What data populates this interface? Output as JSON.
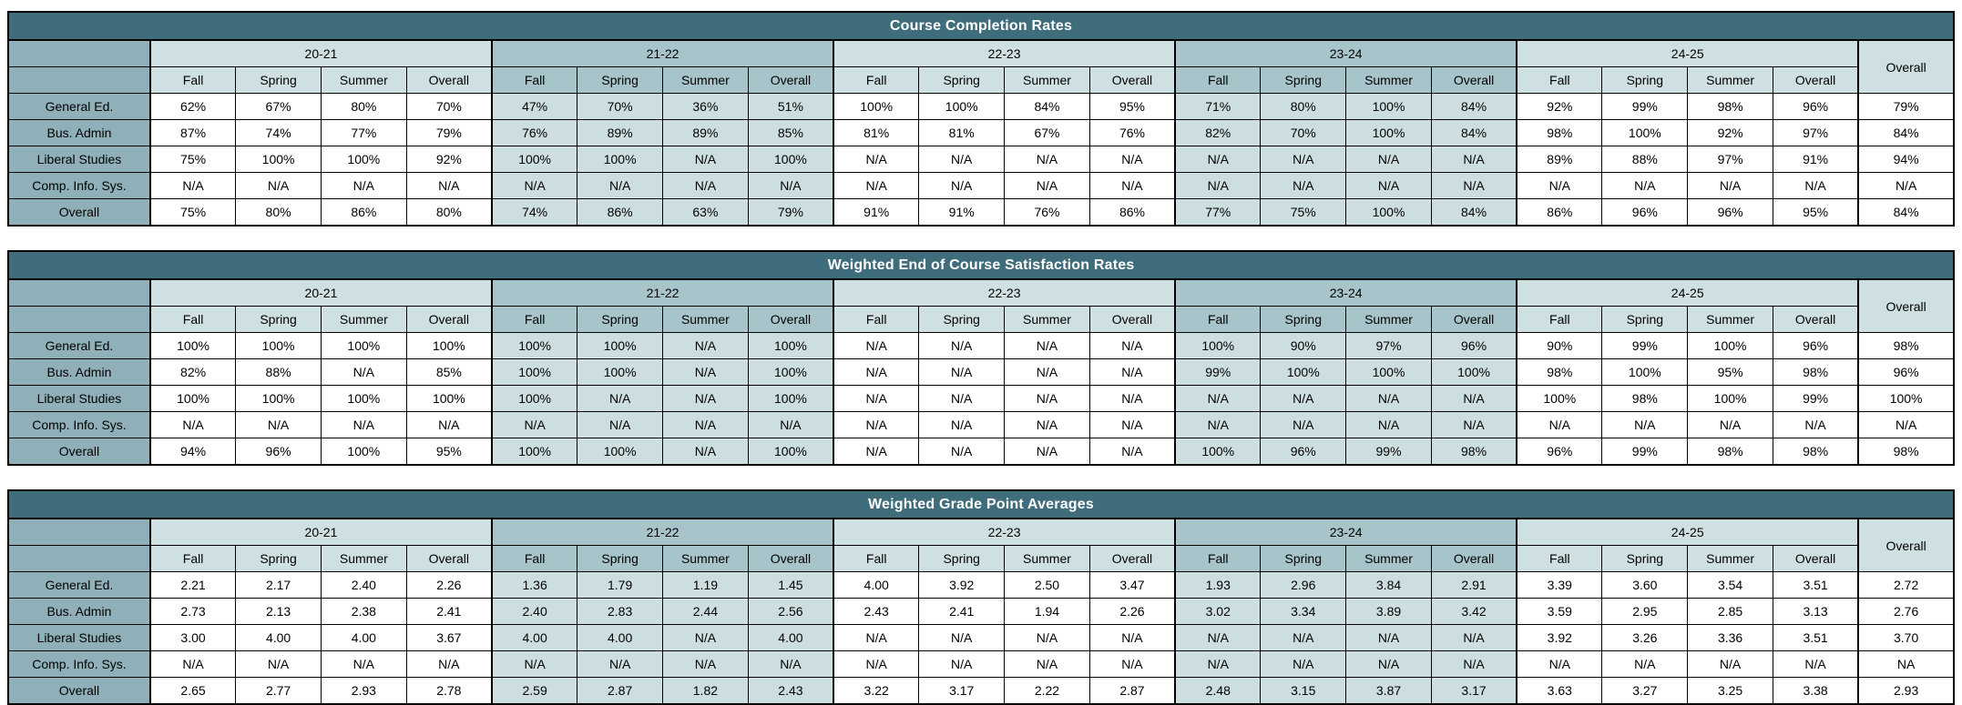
{
  "report": {
    "year_groups": [
      "20-21",
      "21-22",
      "22-23",
      "23-24",
      "24-25"
    ],
    "season_labels": [
      "Fall",
      "Spring",
      "Summer",
      "Overall"
    ],
    "overall_column_label": "Overall",
    "row_labels": [
      "General Ed.",
      "Bus. Admin",
      "Liberal Studies",
      "Comp. Info. Sys.",
      "Overall"
    ],
    "colors": {
      "title_bar": "#3f6d7b",
      "label_column": "#8fb0b8",
      "header_light": "#cfe0e2",
      "header_dark": "#a7c4ca",
      "data_tint": "#cddee1",
      "data_white": "#ffffff",
      "border": "#000000",
      "title_text": "#ffffff"
    },
    "tables": [
      {
        "title": "Course Completion Rates",
        "rows": [
          {
            "label": "General Ed.",
            "values": [
              "62%",
              "67%",
              "80%",
              "70%",
              "47%",
              "70%",
              "36%",
              "51%",
              "100%",
              "100%",
              "84%",
              "95%",
              "71%",
              "80%",
              "100%",
              "84%",
              "92%",
              "99%",
              "98%",
              "96%"
            ],
            "overall": "79%"
          },
          {
            "label": "Bus. Admin",
            "values": [
              "87%",
              "74%",
              "77%",
              "79%",
              "76%",
              "89%",
              "89%",
              "85%",
              "81%",
              "81%",
              "67%",
              "76%",
              "82%",
              "70%",
              "100%",
              "84%",
              "98%",
              "100%",
              "92%",
              "97%"
            ],
            "overall": "84%"
          },
          {
            "label": "Liberal Studies",
            "values": [
              "75%",
              "100%",
              "100%",
              "92%",
              "100%",
              "100%",
              "N/A",
              "100%",
              "N/A",
              "N/A",
              "N/A",
              "N/A",
              "N/A",
              "N/A",
              "N/A",
              "N/A",
              "89%",
              "88%",
              "97%",
              "91%"
            ],
            "overall": "94%"
          },
          {
            "label": "Comp. Info. Sys.",
            "values": [
              "N/A",
              "N/A",
              "N/A",
              "N/A",
              "N/A",
              "N/A",
              "N/A",
              "N/A",
              "N/A",
              "N/A",
              "N/A",
              "N/A",
              "N/A",
              "N/A",
              "N/A",
              "N/A",
              "N/A",
              "N/A",
              "N/A",
              "N/A"
            ],
            "overall": "N/A"
          },
          {
            "label": "Overall",
            "values": [
              "75%",
              "80%",
              "86%",
              "80%",
              "74%",
              "86%",
              "63%",
              "79%",
              "91%",
              "91%",
              "76%",
              "86%",
              "77%",
              "75%",
              "100%",
              "84%",
              "86%",
              "96%",
              "96%",
              "95%"
            ],
            "overall": "84%"
          }
        ]
      },
      {
        "title": "Weighted End of Course Satisfaction Rates",
        "rows": [
          {
            "label": "General Ed.",
            "values": [
              "100%",
              "100%",
              "100%",
              "100%",
              "100%",
              "100%",
              "N/A",
              "100%",
              "N/A",
              "N/A",
              "N/A",
              "N/A",
              "100%",
              "90%",
              "97%",
              "96%",
              "90%",
              "99%",
              "100%",
              "96%"
            ],
            "overall": "98%"
          },
          {
            "label": "Bus. Admin",
            "values": [
              "82%",
              "88%",
              "N/A",
              "85%",
              "100%",
              "100%",
              "N/A",
              "100%",
              "N/A",
              "N/A",
              "N/A",
              "N/A",
              "99%",
              "100%",
              "100%",
              "100%",
              "98%",
              "100%",
              "95%",
              "98%"
            ],
            "overall": "96%"
          },
          {
            "label": "Liberal Studies",
            "values": [
              "100%",
              "100%",
              "100%",
              "100%",
              "100%",
              "N/A",
              "N/A",
              "100%",
              "N/A",
              "N/A",
              "N/A",
              "N/A",
              "N/A",
              "N/A",
              "N/A",
              "N/A",
              "100%",
              "98%",
              "100%",
              "99%"
            ],
            "overall": "100%"
          },
          {
            "label": "Comp. Info. Sys.",
            "values": [
              "N/A",
              "N/A",
              "N/A",
              "N/A",
              "N/A",
              "N/A",
              "N/A",
              "N/A",
              "N/A",
              "N/A",
              "N/A",
              "N/A",
              "N/A",
              "N/A",
              "N/A",
              "N/A",
              "N/A",
              "N/A",
              "N/A",
              "N/A"
            ],
            "overall": "N/A"
          },
          {
            "label": "Overall",
            "values": [
              "94%",
              "96%",
              "100%",
              "95%",
              "100%",
              "100%",
              "N/A",
              "100%",
              "N/A",
              "N/A",
              "N/A",
              "N/A",
              "100%",
              "96%",
              "99%",
              "98%",
              "96%",
              "99%",
              "98%",
              "98%"
            ],
            "overall": "98%"
          }
        ]
      },
      {
        "title": "Weighted Grade Point Averages",
        "rows": [
          {
            "label": "General Ed.",
            "values": [
              "2.21",
              "2.17",
              "2.40",
              "2.26",
              "1.36",
              "1.79",
              "1.19",
              "1.45",
              "4.00",
              "3.92",
              "2.50",
              "3.47",
              "1.93",
              "2.96",
              "3.84",
              "2.91",
              "3.39",
              "3.60",
              "3.54",
              "3.51"
            ],
            "overall": "2.72"
          },
          {
            "label": "Bus. Admin",
            "values": [
              "2.73",
              "2.13",
              "2.38",
              "2.41",
              "2.40",
              "2.83",
              "2.44",
              "2.56",
              "2.43",
              "2.41",
              "1.94",
              "2.26",
              "3.02",
              "3.34",
              "3.89",
              "3.42",
              "3.59",
              "2.95",
              "2.85",
              "3.13"
            ],
            "overall": "2.76"
          },
          {
            "label": "Liberal Studies",
            "values": [
              "3.00",
              "4.00",
              "4.00",
              "3.67",
              "4.00",
              "4.00",
              "N/A",
              "4.00",
              "N/A",
              "N/A",
              "N/A",
              "N/A",
              "N/A",
              "N/A",
              "N/A",
              "N/A",
              "3.92",
              "3.26",
              "3.36",
              "3.51"
            ],
            "overall": "3.70"
          },
          {
            "label": "Comp. Info. Sys.",
            "values": [
              "N/A",
              "N/A",
              "N/A",
              "N/A",
              "N/A",
              "N/A",
              "N/A",
              "N/A",
              "N/A",
              "N/A",
              "N/A",
              "N/A",
              "N/A",
              "N/A",
              "N/A",
              "N/A",
              "N/A",
              "N/A",
              "N/A",
              "N/A"
            ],
            "overall": "NA"
          },
          {
            "label": "Overall",
            "values": [
              "2.65",
              "2.77",
              "2.93",
              "2.78",
              "2.59",
              "2.87",
              "1.82",
              "2.43",
              "3.22",
              "3.17",
              "2.22",
              "2.87",
              "2.48",
              "3.15",
              "3.87",
              "3.17",
              "3.63",
              "3.27",
              "3.25",
              "3.38"
            ],
            "overall": "2.93"
          }
        ]
      }
    ]
  }
}
